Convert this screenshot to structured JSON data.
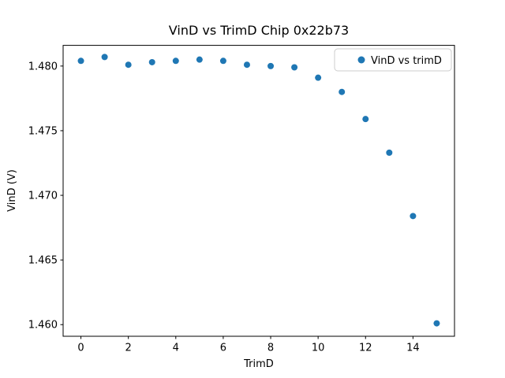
{
  "figure": {
    "window_background": "#ffffff"
  },
  "chart_data": {
    "type": "scatter",
    "title": "VinD vs TrimD Chip 0x22b73",
    "xlabel": "TrimD",
    "ylabel": "VinD (V)",
    "x": [
      0,
      1,
      2,
      3,
      4,
      5,
      6,
      7,
      8,
      9,
      10,
      11,
      12,
      13,
      14,
      15
    ],
    "series": [
      {
        "name": "VinD vs trimD",
        "values": [
          1.4804,
          1.4807,
          1.4801,
          1.4803,
          1.4804,
          1.4805,
          1.4804,
          1.4801,
          1.48,
          1.4799,
          1.4791,
          1.478,
          1.4759,
          1.4733,
          1.4684,
          1.4601
        ]
      }
    ],
    "xlim": [
      -0.75,
      15.75
    ],
    "ylim": [
      1.4591,
      1.4816
    ],
    "xticks": [
      0,
      2,
      4,
      6,
      8,
      10,
      12,
      14
    ],
    "yticks": [
      1.46,
      1.465,
      1.47,
      1.475,
      1.48
    ],
    "ytick_decimals": 3,
    "grid": false,
    "legend": {
      "position": "upper right",
      "entries": [
        "VinD vs trimD"
      ]
    },
    "marker_color": "#1f77b4",
    "spine_color": "#000000",
    "legend_border_color": "#cccccc"
  }
}
